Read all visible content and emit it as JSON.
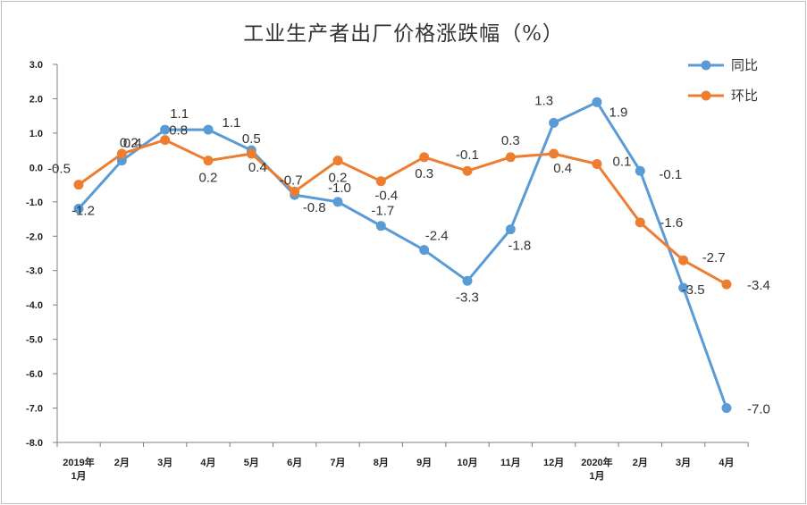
{
  "chart_data": {
    "type": "line",
    "title": "工业生产者出厂价格涨跌幅（%）",
    "xlabel": "",
    "ylabel": "",
    "ylim": [
      -8.0,
      3.0
    ],
    "yticks": [
      "3.0",
      "2.0",
      "1.0",
      "0.0",
      "-1.0",
      "-2.0",
      "-3.0",
      "-4.0",
      "-5.0",
      "-6.0",
      "-7.0",
      "-8.0"
    ],
    "categories": [
      [
        "2019年",
        "1月"
      ],
      [
        "2月"
      ],
      [
        "3月"
      ],
      [
        "4月"
      ],
      [
        "5月"
      ],
      [
        "6月"
      ],
      [
        "7月"
      ],
      [
        "8月"
      ],
      [
        "9月"
      ],
      [
        "10月"
      ],
      [
        "11月"
      ],
      [
        "12月"
      ],
      [
        "2020年",
        "1月"
      ],
      [
        "2月"
      ],
      [
        "3月"
      ],
      [
        "4月"
      ]
    ],
    "legend_position": "top-right",
    "grid": false,
    "series": [
      {
        "name": "同比",
        "color": "#5b9bd5",
        "values": [
          -1.2,
          0.2,
          1.1,
          1.1,
          0.5,
          -0.8,
          -1.0,
          -1.7,
          -2.4,
          -3.3,
          -1.8,
          1.3,
          1.9,
          -0.1,
          -3.5,
          -7.0
        ],
        "labels": [
          "-1.2",
          "0.2",
          "1.1",
          "1.1",
          "0.5",
          "-0.8",
          "-1.0",
          "-1.7",
          "-2.4",
          "-3.3",
          "-1.8",
          "1.3",
          "1.9",
          "-0.1",
          "-3.5",
          "-7.0"
        ]
      },
      {
        "name": "环比",
        "color": "#ed7d31",
        "values": [
          -0.5,
          0.4,
          0.8,
          0.2,
          0.4,
          -0.7,
          0.2,
          -0.4,
          0.3,
          -0.1,
          0.3,
          0.4,
          0.1,
          -1.6,
          -2.7,
          -3.4
        ],
        "labels": [
          "-0.5",
          "0.4",
          "0.8",
          "0.2",
          "0.4",
          "-0.7",
          "0.2",
          "-0.4",
          "0.3",
          "-0.1",
          "0.3",
          "0.4",
          "0.1",
          "-1.6",
          "-2.7",
          "-3.4"
        ]
      }
    ]
  }
}
